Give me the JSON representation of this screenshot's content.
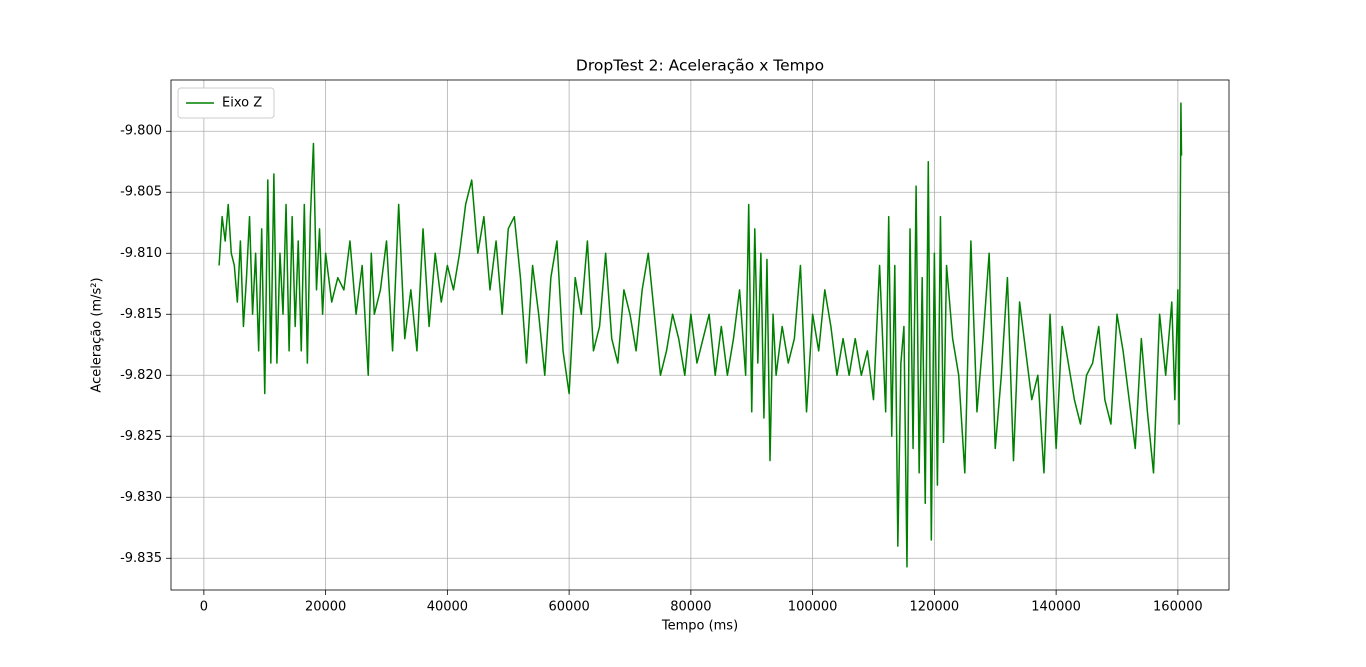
{
  "chart_data": {
    "type": "line",
    "title": "DropTest 2: Aceleração x Tempo",
    "xlabel": "Tempo (ms)",
    "ylabel": "Aceleração (m/s²)",
    "x": [
      2500,
      3000,
      3500,
      4000,
      4500,
      5000,
      5500,
      6000,
      6500,
      7000,
      7500,
      8000,
      8500,
      9000,
      9500,
      10000,
      10500,
      11000,
      11500,
      12000,
      12500,
      13000,
      13500,
      14000,
      14500,
      15000,
      15500,
      16000,
      16500,
      17000,
      17500,
      18000,
      18500,
      19000,
      19500,
      20000,
      21000,
      22000,
      23000,
      24000,
      25000,
      26000,
      27000,
      27500,
      28000,
      29000,
      30000,
      31000,
      32000,
      33000,
      34000,
      35000,
      36000,
      37000,
      38000,
      39000,
      40000,
      41000,
      42000,
      43000,
      44000,
      45000,
      46000,
      47000,
      48000,
      49000,
      50000,
      51000,
      52000,
      53000,
      54000,
      55000,
      56000,
      57000,
      58000,
      59000,
      60000,
      61000,
      62000,
      63000,
      64000,
      65000,
      66000,
      67000,
      68000,
      69000,
      70000,
      71000,
      72000,
      73000,
      74000,
      75000,
      76000,
      77000,
      78000,
      79000,
      80000,
      81000,
      82000,
      83000,
      84000,
      85000,
      86000,
      87000,
      88000,
      89000,
      89500,
      90000,
      90500,
      91000,
      91500,
      92000,
      92500,
      93000,
      93500,
      94000,
      95000,
      96000,
      97000,
      98000,
      99000,
      100000,
      101000,
      102000,
      103000,
      104000,
      105000,
      106000,
      107000,
      108000,
      109000,
      110000,
      111000,
      112000,
      112500,
      113000,
      113500,
      114000,
      114500,
      115000,
      115500,
      116000,
      116500,
      117000,
      117500,
      118000,
      118500,
      119000,
      119500,
      120000,
      120500,
      121000,
      121500,
      122000,
      123000,
      124000,
      125000,
      126000,
      127000,
      128000,
      129000,
      130000,
      131000,
      132000,
      133000,
      134000,
      135000,
      136000,
      137000,
      138000,
      139000,
      140000,
      141000,
      142000,
      143000,
      144000,
      145000,
      146000,
      147000,
      148000,
      149000,
      150000,
      151000,
      152000,
      153000,
      154000,
      155000,
      156000,
      157000,
      158000,
      159000,
      159500,
      160000,
      160200,
      160500,
      160600
    ],
    "series": [
      {
        "name": "Eixo Z",
        "color": "#008000",
        "values": [
          -9.811,
          -9.807,
          -9.809,
          -9.806,
          -9.81,
          -9.811,
          -9.814,
          -9.809,
          -9.816,
          -9.812,
          -9.807,
          -9.815,
          -9.81,
          -9.818,
          -9.808,
          -9.8215,
          -9.804,
          -9.819,
          -9.8035,
          -9.819,
          -9.81,
          -9.815,
          -9.806,
          -9.818,
          -9.807,
          -9.816,
          -9.809,
          -9.818,
          -9.806,
          -9.819,
          -9.807,
          -9.801,
          -9.813,
          -9.808,
          -9.815,
          -9.81,
          -9.814,
          -9.812,
          -9.813,
          -9.809,
          -9.815,
          -9.811,
          -9.82,
          -9.81,
          -9.815,
          -9.813,
          -9.809,
          -9.818,
          -9.806,
          -9.817,
          -9.813,
          -9.818,
          -9.808,
          -9.816,
          -9.81,
          -9.814,
          -9.811,
          -9.813,
          -9.81,
          -9.806,
          -9.804,
          -9.81,
          -9.807,
          -9.813,
          -9.809,
          -9.815,
          -9.808,
          -9.807,
          -9.812,
          -9.819,
          -9.811,
          -9.815,
          -9.82,
          -9.812,
          -9.809,
          -9.818,
          -9.8215,
          -9.812,
          -9.815,
          -9.809,
          -9.818,
          -9.816,
          -9.81,
          -9.817,
          -9.819,
          -9.813,
          -9.815,
          -9.818,
          -9.813,
          -9.81,
          -9.815,
          -9.82,
          -9.818,
          -9.815,
          -9.817,
          -9.82,
          -9.815,
          -9.819,
          -9.817,
          -9.815,
          -9.82,
          -9.816,
          -9.82,
          -9.817,
          -9.813,
          -9.82,
          -9.806,
          -9.823,
          -9.808,
          -9.819,
          -9.81,
          -9.8235,
          -9.8105,
          -9.827,
          -9.815,
          -9.82,
          -9.816,
          -9.819,
          -9.817,
          -9.811,
          -9.823,
          -9.815,
          -9.818,
          -9.813,
          -9.816,
          -9.82,
          -9.817,
          -9.82,
          -9.817,
          -9.82,
          -9.818,
          -9.822,
          -9.811,
          -9.823,
          -9.807,
          -9.825,
          -9.811,
          -9.834,
          -9.819,
          -9.816,
          -9.8357,
          -9.808,
          -9.826,
          -9.8045,
          -9.828,
          -9.812,
          -9.8305,
          -9.8025,
          -9.8335,
          -9.81,
          -9.829,
          -9.807,
          -9.8255,
          -9.811,
          -9.817,
          -9.82,
          -9.828,
          -9.809,
          -9.823,
          -9.817,
          -9.81,
          -9.826,
          -9.82,
          -9.812,
          -9.827,
          -9.814,
          -9.818,
          -9.822,
          -9.82,
          -9.828,
          -9.815,
          -9.826,
          -9.816,
          -9.819,
          -9.822,
          -9.824,
          -9.82,
          -9.819,
          -9.816,
          -9.822,
          -9.824,
          -9.815,
          -9.818,
          -9.822,
          -9.826,
          -9.817,
          -9.823,
          -9.828,
          -9.815,
          -9.82,
          -9.814,
          -9.822,
          -9.813,
          -9.824,
          -9.7977,
          -9.802
        ]
      }
    ],
    "xlim": [
      -5400,
      168400
    ],
    "ylim": [
      -9.8376,
      -9.7958
    ],
    "xticks": [
      0,
      20000,
      40000,
      60000,
      80000,
      100000,
      120000,
      140000,
      160000
    ],
    "yticks": [
      {
        "value": -9.835,
        "label": "-9.835"
      },
      {
        "value": -9.83,
        "label": "-9.830"
      },
      {
        "value": -9.825,
        "label": "-9.825"
      },
      {
        "value": -9.82,
        "label": "-9.820"
      },
      {
        "value": -9.815,
        "label": "-9.815"
      },
      {
        "value": -9.81,
        "label": "-9.810"
      },
      {
        "value": -9.805,
        "label": "-9.805"
      },
      {
        "value": -9.8,
        "label": "-9.800"
      }
    ],
    "grid": true,
    "legend": "upper left"
  }
}
